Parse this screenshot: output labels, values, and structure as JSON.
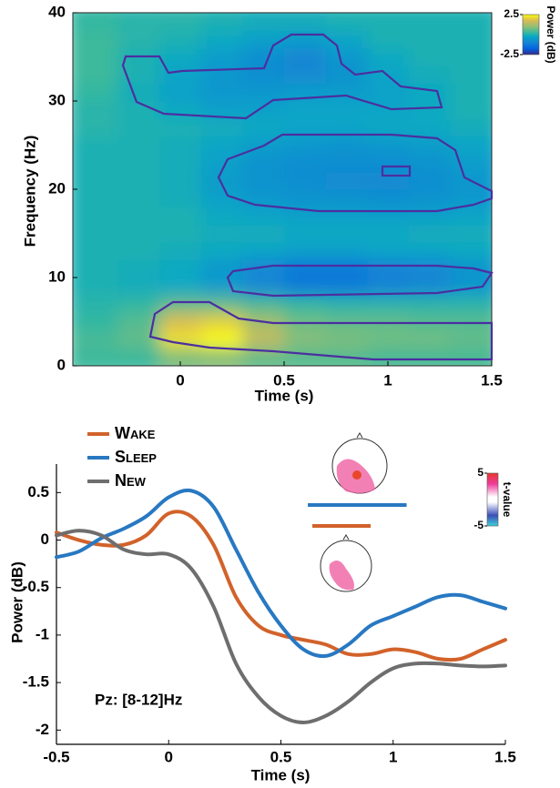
{
  "chart_data": [
    {
      "type": "heatmap",
      "x": [
        -0.4,
        -0.2,
        0,
        0.2,
        0.4,
        0.6,
        0.8,
        1.0,
        1.2,
        1.4
      ],
      "y": [
        1,
        3,
        5,
        7,
        9,
        11,
        13,
        15,
        17,
        19,
        21,
        23,
        25,
        27,
        29,
        31,
        33,
        35,
        37,
        39
      ],
      "z": [
        [
          0.3,
          0.3,
          0.8,
          0.9,
          0.6,
          0.5,
          0.5,
          0.4,
          0.4,
          0.4
        ],
        [
          0.4,
          0.6,
          2.2,
          2.5,
          1.5,
          0.9,
          0.8,
          0.7,
          0.7,
          0.6
        ],
        [
          0.2,
          0.5,
          1.8,
          2.0,
          1.2,
          0.7,
          0.6,
          0.6,
          0.5,
          0.5
        ],
        [
          0.1,
          0.2,
          0.6,
          0.6,
          0.4,
          0.2,
          0.1,
          0.1,
          0.1,
          0.1
        ],
        [
          0,
          -0.1,
          -0.2,
          -0.5,
          -0.9,
          -1.2,
          -1.2,
          -1.0,
          -0.9,
          -0.6
        ],
        [
          0,
          -0.1,
          -0.2,
          -0.6,
          -1.0,
          -1.3,
          -1.3,
          -1.1,
          -1.0,
          -0.7
        ],
        [
          0,
          0,
          -0.1,
          -0.2,
          -0.3,
          -0.4,
          -0.4,
          -0.3,
          -0.3,
          -0.2
        ],
        [
          0,
          0,
          0,
          -0.1,
          -0.1,
          -0.2,
          -0.2,
          -0.2,
          -0.1,
          -0.1
        ],
        [
          0,
          0,
          0,
          -0.2,
          -0.3,
          -0.4,
          -0.4,
          -0.4,
          -0.4,
          -0.3
        ],
        [
          0,
          0,
          -0.1,
          -0.4,
          -0.6,
          -0.7,
          -0.7,
          -0.8,
          -0.7,
          -0.6
        ],
        [
          0,
          0,
          -0.1,
          -0.5,
          -0.7,
          -0.8,
          -0.9,
          -0.9,
          -0.8,
          -0.6
        ],
        [
          0,
          0,
          -0.1,
          -0.4,
          -0.7,
          -0.8,
          -0.8,
          -0.8,
          -0.7,
          -0.5
        ],
        [
          0,
          0,
          -0.1,
          -0.3,
          -0.5,
          -0.6,
          -0.7,
          -0.6,
          -0.5,
          -0.3
        ],
        [
          0.1,
          0,
          0,
          -0.1,
          -0.2,
          -0.3,
          -0.3,
          -0.2,
          -0.2,
          -0.1
        ],
        [
          0.1,
          0,
          -0.2,
          -0.4,
          -0.4,
          -0.3,
          -0.3,
          -0.3,
          -0.2,
          0
        ],
        [
          0.2,
          -0.1,
          -0.4,
          -0.6,
          -0.6,
          -0.5,
          -0.5,
          -0.4,
          -0.2,
          0
        ],
        [
          0.3,
          0,
          -0.3,
          -0.6,
          -0.8,
          -0.9,
          -0.7,
          -0.3,
          -0.1,
          0
        ],
        [
          0.3,
          0,
          -0.2,
          -0.5,
          -0.8,
          -1.0,
          -0.6,
          -0.2,
          0,
          0
        ],
        [
          0.3,
          0.1,
          0,
          -0.2,
          -0.4,
          -0.5,
          -0.3,
          0,
          0,
          0
        ],
        [
          0.2,
          0.1,
          0.1,
          0,
          -0.1,
          -0.1,
          0,
          0,
          0,
          0
        ]
      ],
      "xlim": [
        -0.5,
        1.5
      ],
      "ylim": [
        0,
        40
      ],
      "xticks": [
        0,
        0.5,
        1,
        1.5
      ],
      "yticks": [
        0,
        10,
        20,
        30,
        40
      ],
      "xlabel": "Time (s)",
      "ylabel": "Frequency (Hz)",
      "colorbar": {
        "label": "Power (dB)",
        "clim": [
          -2.5,
          2.5
        ],
        "ticks": [
          2.5,
          -2.5
        ]
      }
    },
    {
      "type": "line",
      "x": [
        -0.5,
        -0.4,
        -0.3,
        -0.2,
        -0.1,
        0,
        0.1,
        0.2,
        0.3,
        0.4,
        0.5,
        0.6,
        0.7,
        0.8,
        0.9,
        1.0,
        1.1,
        1.2,
        1.3,
        1.4,
        1.5
      ],
      "series": [
        {
          "name": "Wake",
          "color": "#d2622a",
          "values": [
            0.08,
            0,
            -0.05,
            -0.05,
            0.05,
            0.28,
            0.25,
            -0.05,
            -0.6,
            -0.9,
            -1.0,
            -1.05,
            -1.1,
            -1.2,
            -1.2,
            -1.15,
            -1.18,
            -1.25,
            -1.25,
            -1.15,
            -1.05
          ]
        },
        {
          "name": "Sleep",
          "color": "#2878c2",
          "values": [
            -0.18,
            -0.12,
            0.02,
            0.12,
            0.25,
            0.45,
            0.52,
            0.35,
            -0.1,
            -0.55,
            -0.9,
            -1.15,
            -1.22,
            -1.1,
            -0.9,
            -0.8,
            -0.7,
            -0.6,
            -0.58,
            -0.65,
            -0.72
          ]
        },
        {
          "name": "New",
          "color": "#6e6e6e",
          "values": [
            0.05,
            0.1,
            0.05,
            -0.1,
            -0.15,
            -0.15,
            -0.3,
            -0.7,
            -1.3,
            -1.65,
            -1.85,
            -1.92,
            -1.85,
            -1.7,
            -1.5,
            -1.35,
            -1.3,
            -1.3,
            -1.32,
            -1.33,
            -1.32
          ]
        }
      ],
      "xlim": [
        -0.5,
        1.5
      ],
      "ylim": [
        -2.15,
        0.8
      ],
      "xticks": [
        -0.5,
        0,
        0.5,
        1,
        1.5
      ],
      "yticks": [
        0.5,
        0,
        -0.5,
        -1,
        -1.5,
        -2
      ],
      "xlabel": "Time (s)",
      "ylabel": "Power (dB)",
      "annotation": "Pz: [8-12]Hz",
      "significance": [
        {
          "color": "#2878c2",
          "start": 0.62,
          "end": 1.06
        },
        {
          "color": "#d2622a",
          "start": 0.64,
          "end": 0.9
        }
      ],
      "colorbar": {
        "label": "t-value",
        "clim": [
          -5,
          5
        ],
        "ticks": [
          5,
          -5
        ]
      }
    }
  ]
}
